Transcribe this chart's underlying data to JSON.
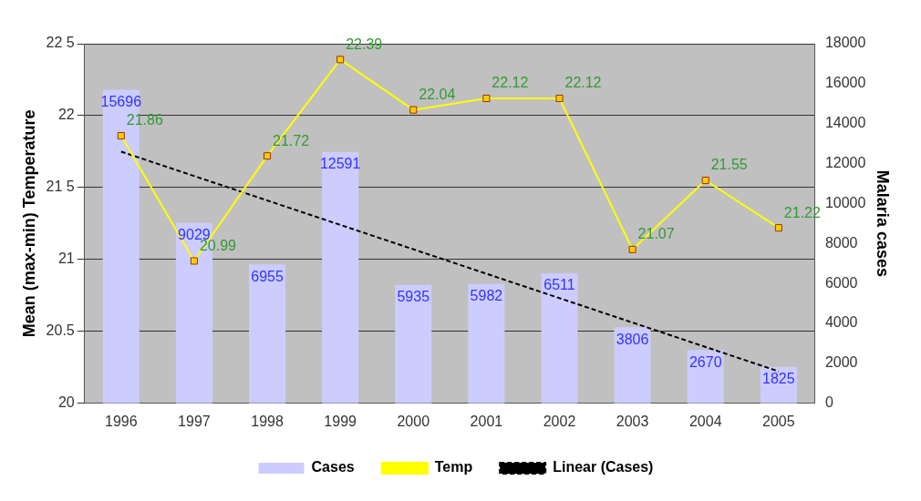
{
  "chart_data": {
    "type": "bar",
    "categories": [
      "1996",
      "1997",
      "1998",
      "1999",
      "2000",
      "2001",
      "2002",
      "2003",
      "2004",
      "2005"
    ],
    "series": [
      {
        "name": "Cases",
        "axis": "y2",
        "color": "#ccccff",
        "values": [
          15696,
          9029,
          6955,
          12591,
          5935,
          5982,
          6511,
          3806,
          2670,
          1825
        ],
        "value_labels": [
          "15696",
          "9029",
          "6955",
          "12591",
          "5935",
          "5982",
          "6511",
          "3806",
          "2670",
          "1825"
        ]
      },
      {
        "name": "Temp",
        "type": "line",
        "axis": "y",
        "color": "#ffff00",
        "marker": "square",
        "values": [
          21.86,
          20.99,
          21.72,
          22.39,
          22.04,
          22.12,
          22.12,
          21.07,
          21.55,
          21.22
        ],
        "value_labels": [
          "21.86",
          "20.99",
          "21.72",
          "22.39",
          "22.04",
          "22.12",
          "22.12",
          "21.07",
          "21.55",
          "21.22"
        ]
      },
      {
        "name": "Linear (Cases)",
        "type": "line",
        "axis": "y2",
        "color": "#000000",
        "marker": "none",
        "line_style": "dashed",
        "values": [
          12600,
          null,
          null,
          null,
          null,
          null,
          null,
          null,
          null,
          1600
        ]
      }
    ],
    "ylabel": "Mean (max-min) Temperature",
    "y2label": "Malaria cases",
    "ylim": [
      20,
      22.5
    ],
    "yticks": [
      20,
      20.5,
      21,
      {
        "value": 21.5,
        "label": "21 5"
      },
      22,
      {
        "value": 22.5,
        "label": "22 5"
      }
    ],
    "y2lim": [
      0,
      18000
    ],
    "y2ticks": [
      0,
      2000,
      4000,
      6000,
      8000,
      10000,
      12000,
      14000,
      16000,
      18000
    ],
    "grid": "y",
    "legend": "bottom"
  }
}
